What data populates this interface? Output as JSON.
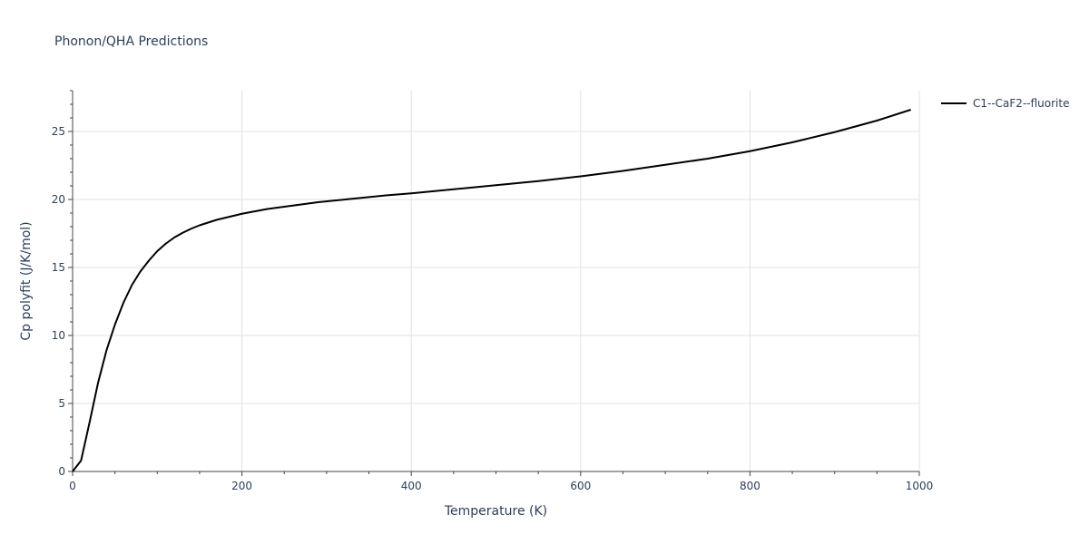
{
  "chart_data": {
    "type": "line",
    "title": "Phonon/QHA Predictions",
    "xlabel": "Temperature (K)",
    "ylabel": "Cp polyfit (J/K/mol)",
    "xlim": [
      0,
      1000
    ],
    "ylim": [
      0,
      28
    ],
    "x_ticks": [
      0,
      200,
      400,
      600,
      800,
      1000
    ],
    "y_ticks": [
      0,
      5,
      10,
      15,
      20,
      25
    ],
    "x_tick_labels": [
      "0",
      "200",
      "400",
      "600",
      "800",
      "1000"
    ],
    "y_tick_labels": [
      "0",
      "5",
      "10",
      "15",
      "20",
      "25"
    ],
    "grid": true,
    "legend_position": "top-right",
    "series": [
      {
        "name": "C1--CaF2--fluorite",
        "color": "#000000",
        "x": [
          0,
          10,
          20,
          30,
          40,
          50,
          60,
          70,
          80,
          90,
          100,
          110,
          120,
          130,
          140,
          150,
          160,
          170,
          180,
          200,
          230,
          260,
          290,
          330,
          370,
          400,
          450,
          500,
          550,
          600,
          650,
          700,
          750,
          800,
          850,
          900,
          950,
          990
        ],
        "y": [
          0,
          0.8,
          3.6,
          6.5,
          8.9,
          10.8,
          12.4,
          13.7,
          14.7,
          15.5,
          16.2,
          16.75,
          17.2,
          17.55,
          17.85,
          18.1,
          18.3,
          18.5,
          18.65,
          18.95,
          19.3,
          19.55,
          19.8,
          20.05,
          20.3,
          20.45,
          20.75,
          21.05,
          21.35,
          21.7,
          22.1,
          22.55,
          23.0,
          23.55,
          24.2,
          24.95,
          25.8,
          26.6
        ]
      }
    ]
  }
}
